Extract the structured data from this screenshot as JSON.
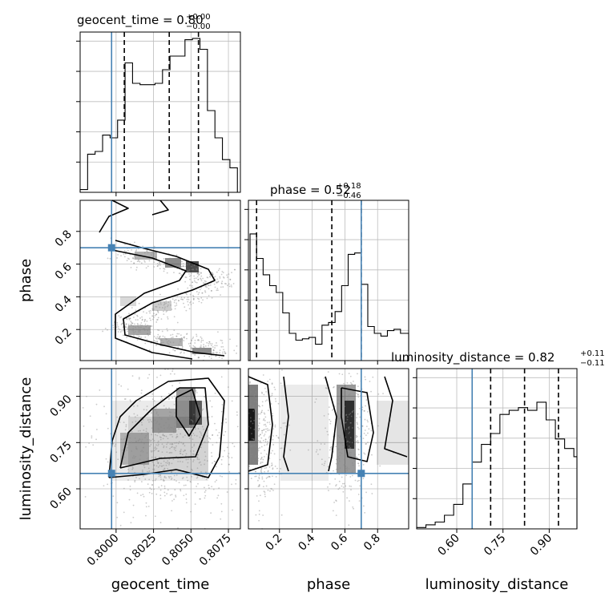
{
  "chart_data": {
    "type": "corner",
    "parameters": [
      "geocent_time",
      "phase",
      "luminosity_distance"
    ],
    "axis_labels": {
      "geocent_time": "geocent_time",
      "phase": "phase",
      "luminosity_distance": "luminosity_distance"
    },
    "ranges": {
      "geocent_time": [
        0.7976,
        0.8083
      ],
      "phase": [
        0.01,
        0.99
      ],
      "luminosity_distance": [
        0.47,
        0.99
      ]
    },
    "ticks": {
      "geocent_time": [
        0.8,
        0.8025,
        0.805,
        0.8075
      ],
      "geocent_time_labels": [
        "0.8000",
        "0.8025",
        "0.8050",
        "0.8075"
      ],
      "phase": [
        0.2,
        0.4,
        0.6,
        0.8
      ],
      "phase_labels": [
        "0.2",
        "0.4",
        "0.6",
        "0.8"
      ],
      "luminosity_distance": [
        0.6,
        0.75,
        0.9
      ],
      "luminosity_distance_labels": [
        "0.60",
        "0.75",
        "0.90"
      ]
    },
    "titles": {
      "geocent_time": {
        "text": "geocent_time = 0.80",
        "plus": "+0.00",
        "minus": "−0.00"
      },
      "phase": {
        "text": "phase = 0.52",
        "plus": "+0.18",
        "minus": "−0.46"
      },
      "luminosity_distance": {
        "text": "luminosity_distance = 0.82",
        "plus": "+0.11",
        "minus": "−0.11"
      }
    },
    "truths": {
      "geocent_time": 0.7997,
      "phase": 0.7,
      "luminosity_distance": 0.65
    },
    "quantiles": {
      "geocent_time": [
        0.80055,
        0.80355,
        0.8055
      ],
      "phase": [
        0.06,
        0.52,
        0.7
      ],
      "luminosity_distance": [
        0.71,
        0.82,
        0.93
      ]
    },
    "histograms": {
      "geocent_time": {
        "edges": [
          0.7976,
          0.7981,
          0.7986,
          0.7991,
          0.7996,
          0.8001,
          0.8006,
          0.8011,
          0.8016,
          0.8021,
          0.8026,
          0.8031,
          0.8036,
          0.8041,
          0.8046,
          0.8051,
          0.8056,
          0.8061,
          0.8066,
          0.8071,
          0.8076,
          0.8081
        ],
        "counts": [
          0.02,
          0.28,
          0.3,
          0.42,
          0.4,
          0.53,
          0.95,
          0.8,
          0.79,
          0.79,
          0.8,
          0.9,
          1.0,
          1.0,
          1.12,
          1.13,
          1.05,
          0.6,
          0.4,
          0.24,
          0.18
        ]
      },
      "phase": {
        "edges": [
          0.02,
          0.06,
          0.1,
          0.14,
          0.18,
          0.22,
          0.26,
          0.3,
          0.34,
          0.38,
          0.42,
          0.46,
          0.5,
          0.54,
          0.58,
          0.62,
          0.66,
          0.7,
          0.74,
          0.78,
          0.82,
          0.86,
          0.9,
          0.94,
          0.99
        ],
        "counts": [
          0.93,
          0.75,
          0.63,
          0.55,
          0.5,
          0.35,
          0.2,
          0.15,
          0.16,
          0.17,
          0.12,
          0.26,
          0.28,
          0.36,
          0.55,
          0.78,
          0.79,
          0.56,
          0.25,
          0.2,
          0.18,
          0.22,
          0.23,
          0.2
        ]
      },
      "luminosity_distance": {
        "edges": [
          0.47,
          0.5,
          0.53,
          0.56,
          0.59,
          0.62,
          0.65,
          0.68,
          0.71,
          0.74,
          0.77,
          0.8,
          0.83,
          0.86,
          0.89,
          0.92,
          0.95,
          0.98,
          0.99
        ],
        "counts": [
          0.01,
          0.03,
          0.05,
          0.1,
          0.18,
          0.33,
          0.49,
          0.62,
          0.7,
          0.84,
          0.87,
          0.89,
          0.87,
          0.93,
          0.8,
          0.66,
          0.59,
          0.53
        ]
      }
    },
    "contour_levels": [
      0.5,
      0.8,
      0.95
    ]
  }
}
